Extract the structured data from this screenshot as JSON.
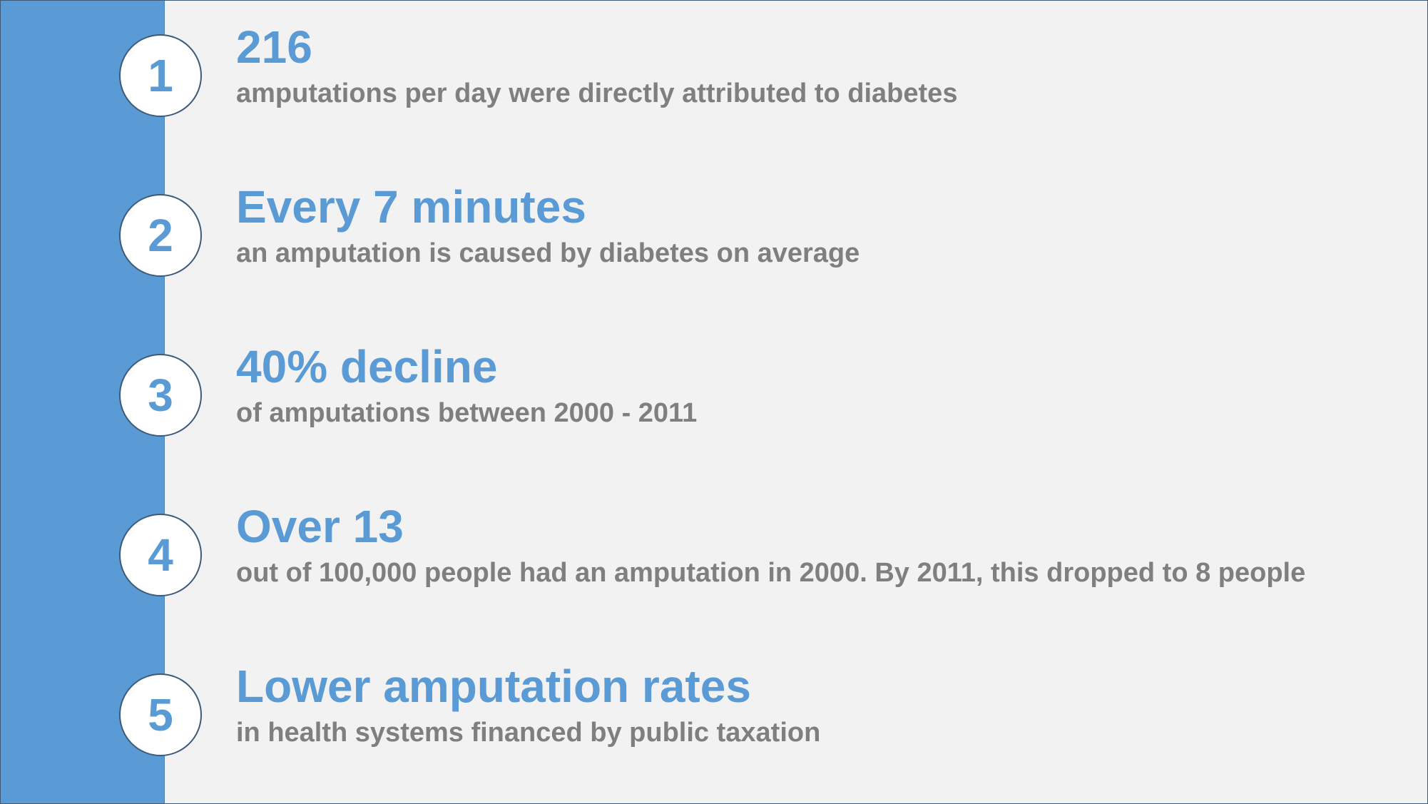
{
  "colors": {
    "accent": "#5b9bd5",
    "body_text": "#7f7f7f",
    "background": "#f2f2f2",
    "badge_border": "#3d5a78"
  },
  "items": [
    {
      "number": "1",
      "headline": "216",
      "detail": "amputations per day were directly attributed to diabetes"
    },
    {
      "number": "2",
      "headline": "Every 7 minutes",
      "detail": "an amputation is caused by diabetes on average"
    },
    {
      "number": "3",
      "headline": "40% decline",
      "detail": "of amputations between 2000 - 2011"
    },
    {
      "number": "4",
      "headline": "Over 13",
      "detail": "out of 100,000 people had an amputation in 2000. By 2011, this dropped to 8 people"
    },
    {
      "number": "5",
      "headline": "Lower amputation rates",
      "detail": "in health systems financed by public taxation"
    }
  ]
}
